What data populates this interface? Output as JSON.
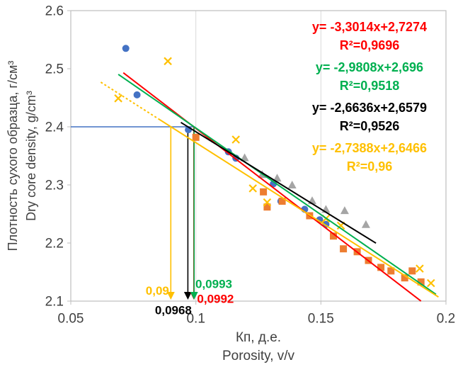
{
  "chart_data": {
    "type": "scatter",
    "title": "",
    "axes": {
      "x": {
        "label_ru": "Кп, д.е.",
        "label_en": "Porosity, v/v",
        "lim": [
          0.05,
          0.2
        ],
        "ticks": [
          {
            "value": 0.05,
            "label": "0.05"
          },
          {
            "value": 0.1,
            "label": "0.1"
          },
          {
            "value": 0.15,
            "label": "0.15"
          },
          {
            "value": 0.2,
            "label": "0.2"
          }
        ]
      },
      "y": {
        "label_ru": "Плотность сухого образца, г/см³",
        "label_en": "Dry core density, g/cm³",
        "lim": [
          2.1,
          2.6
        ],
        "ticks": [
          {
            "value": 2.1,
            "label": "2.1"
          },
          {
            "value": 2.2,
            "label": "2.2"
          },
          {
            "value": 2.3,
            "label": "2.3"
          },
          {
            "value": 2.4,
            "label": "2.4"
          },
          {
            "value": 2.5,
            "label": "2.5"
          },
          {
            "value": 2.6,
            "label": "2.6"
          }
        ]
      }
    },
    "grid": {
      "vertical_at": [
        0.1,
        0.15
      ]
    },
    "series": [
      {
        "name": "blue-circles",
        "marker": "circle",
        "color": "#4472C4",
        "points": [
          [
            0.072,
            2.535
          ],
          [
            0.0765,
            2.455
          ],
          [
            0.097,
            2.395
          ],
          [
            0.113,
            2.357
          ],
          [
            0.116,
            2.346
          ],
          [
            0.131,
            2.302
          ],
          [
            0.134,
            2.272
          ],
          [
            0.1435,
            2.258
          ],
          [
            0.1495,
            2.24
          ],
          [
            0.152,
            2.232
          ]
        ]
      },
      {
        "name": "orange-squares",
        "marker": "square",
        "color": "#ED7D31",
        "points": [
          [
            0.1,
            2.382
          ],
          [
            0.127,
            2.288
          ],
          [
            0.1285,
            2.262
          ],
          [
            0.1345,
            2.272
          ],
          [
            0.1455,
            2.247
          ],
          [
            0.155,
            2.212
          ],
          [
            0.159,
            2.19
          ],
          [
            0.1645,
            2.185
          ],
          [
            0.169,
            2.17
          ],
          [
            0.174,
            2.158
          ],
          [
            0.178,
            2.152
          ],
          [
            0.1835,
            2.14
          ],
          [
            0.1865,
            2.152
          ],
          [
            0.19,
            2.133
          ]
        ]
      },
      {
        "name": "gray-triangles",
        "marker": "triangle",
        "color": "#A5A5A5",
        "points": [
          [
            0.1195,
            2.347
          ],
          [
            0.1265,
            2.318
          ],
          [
            0.1325,
            2.312
          ],
          [
            0.1385,
            2.3
          ],
          [
            0.1465,
            2.273
          ],
          [
            0.152,
            2.258
          ],
          [
            0.1595,
            2.256
          ],
          [
            0.168,
            2.232
          ]
        ]
      },
      {
        "name": "yellow-x",
        "marker": "x",
        "color": "#FFC000",
        "points": [
          [
            0.069,
            2.449
          ],
          [
            0.0888,
            2.513
          ],
          [
            0.116,
            2.378
          ],
          [
            0.1228,
            2.294
          ],
          [
            0.1285,
            2.27
          ],
          [
            0.152,
            2.242
          ],
          [
            0.158,
            2.23
          ],
          [
            0.1895,
            2.156
          ],
          [
            0.194,
            2.131
          ]
        ]
      }
    ],
    "trendlines": [
      {
        "name": "red-trend",
        "color": "#FF0000",
        "slope": -3.3014,
        "intercept": 2.7274,
        "x_start": 0.071,
        "x_end": 0.19,
        "dash": null
      },
      {
        "name": "green-trend",
        "color": "#00B050",
        "slope": -2.9808,
        "intercept": 2.696,
        "x_start": 0.069,
        "x_end": 0.196,
        "dash": null
      },
      {
        "name": "black-trend",
        "color": "#000000",
        "slope": -2.6636,
        "intercept": 2.6579,
        "x_start": 0.094,
        "x_end": 0.172,
        "dash": null
      },
      {
        "name": "yellow-trend",
        "color": "#FFC000",
        "slope": -2.7388,
        "intercept": 2.6466,
        "x_start": 0.085,
        "x_end": 0.197,
        "dash": null
      },
      {
        "name": "yellow-trend-dashed-extension",
        "color": "#FFC000",
        "slope": -2.7388,
        "intercept": 2.6466,
        "x_start": 0.062,
        "x_end": 0.085,
        "dash": "3 3"
      }
    ],
    "construction": {
      "hline": {
        "y": 2.4,
        "x_start": 0.05,
        "x_end": 0.0993,
        "color": "#4472C4"
      },
      "vline_y_from": 2.4,
      "vline_y_to": 2.1,
      "vlines": [
        {
          "x": 0.09,
          "color": "#FFC000"
        },
        {
          "x": 0.0968,
          "color": "#000000"
        },
        {
          "x": 0.0992,
          "color": "#FF0000"
        },
        {
          "x": 0.0993,
          "color": "#00B050"
        }
      ]
    },
    "annotations": [
      {
        "text": "0,09",
        "color": "#FFC000",
        "x": 0.0893,
        "y": 2.118,
        "anchor": "end"
      },
      {
        "text": "0,0968",
        "color": "#000000",
        "x": 0.091,
        "y": 2.085,
        "anchor": "middle"
      },
      {
        "text": "0,0993",
        "color": "#00B050",
        "x": 0.0998,
        "y": 2.13,
        "anchor": "start"
      },
      {
        "text": "0,0992",
        "color": "#FF0000",
        "x": 0.1005,
        "y": 2.104,
        "anchor": "start"
      }
    ],
    "equations": [
      {
        "formula": "y= -3,3014x+2,7274",
        "r2": "R²=0,9696",
        "color": "#FF0000"
      },
      {
        "formula": "y= -2,9808x+2,696",
        "r2": "R²=0,9518",
        "color": "#00B050"
      },
      {
        "formula": "y= -2,6636x+2,6579",
        "r2": "R²=0,9526",
        "color": "#000000"
      },
      {
        "formula": "y= -2,7388x+2,6466",
        "r2": "R²=0,96",
        "color": "#FFC000"
      }
    ],
    "style": {
      "grid_color": "#d9d9d9",
      "border_color": "#bfbfbf",
      "tick_label_color": "#404040"
    }
  }
}
